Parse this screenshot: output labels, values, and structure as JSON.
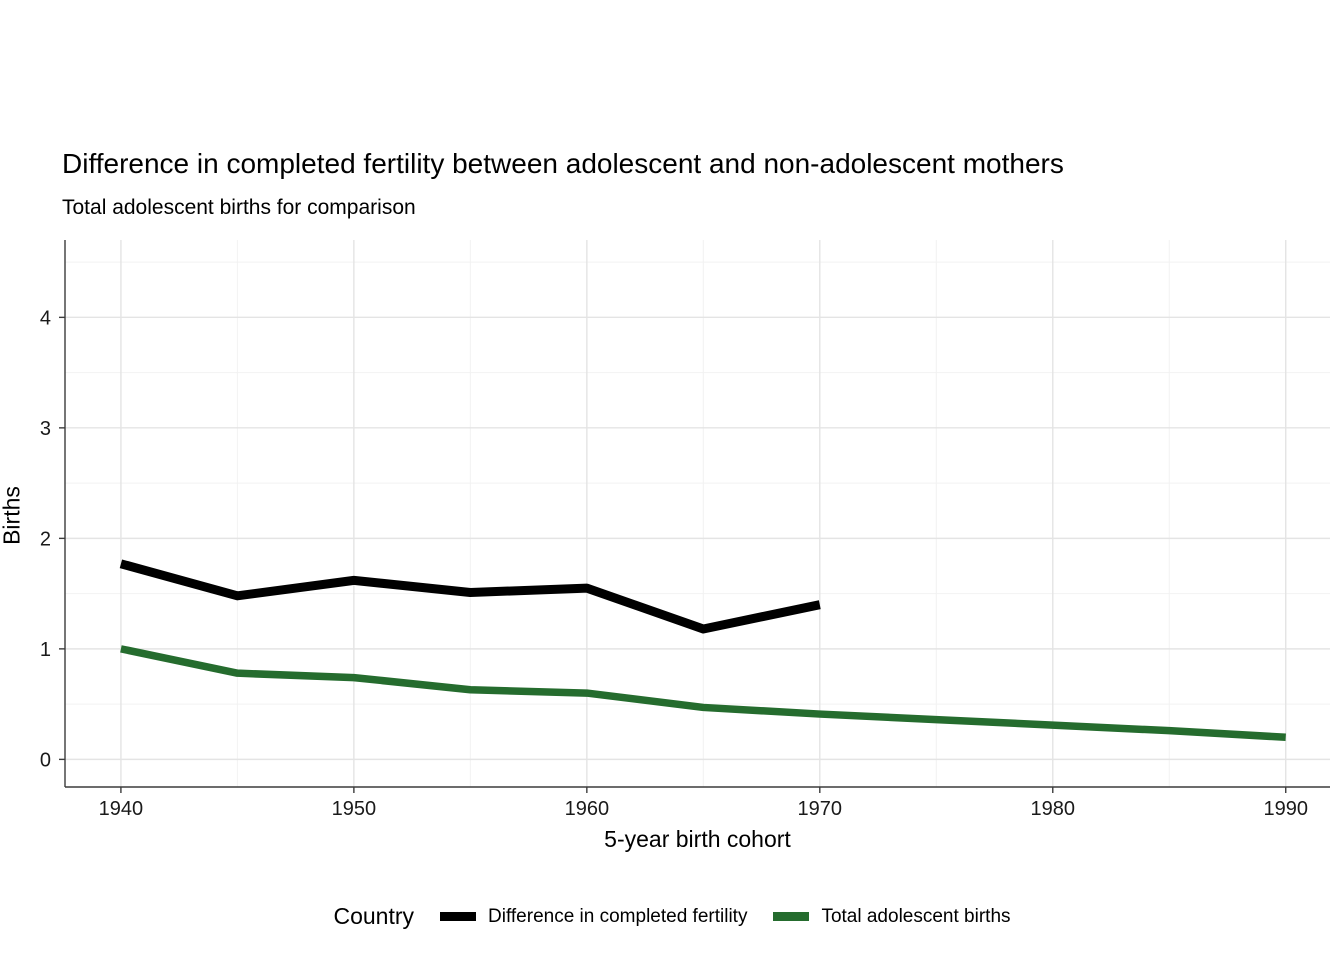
{
  "title": "Difference in completed fertility between adolescent and non-adolescent mothers",
  "subtitle": "Total adolescent births for comparison",
  "chart_data": {
    "type": "line",
    "title": "Difference in completed fertility between adolescent and non-adolescent mothers",
    "subtitle": "Total adolescent births for comparison",
    "xlabel": "5-year birth cohort",
    "ylabel": "Births",
    "legend_title": "Country",
    "legend_position": "bottom",
    "grid": true,
    "xticks": [
      1940,
      1950,
      1960,
      1970,
      1980,
      1990
    ],
    "yticks": [
      0,
      1,
      2,
      3,
      4
    ],
    "xlim": [
      1937.6,
      1991.9
    ],
    "ylim": [
      -0.25,
      4.7
    ],
    "series": [
      {
        "name": "Difference in completed fertility",
        "color": "#000000",
        "x": [
          1940,
          1945,
          1950,
          1955,
          1960,
          1965,
          1970
        ],
        "values": [
          1.77,
          1.48,
          1.62,
          1.51,
          1.55,
          1.18,
          1.4
        ]
      },
      {
        "name": "Total adolescent births",
        "color": "#256c2e",
        "x": [
          1940,
          1945,
          1950,
          1955,
          1960,
          1965,
          1970,
          1975,
          1980,
          1985,
          1990
        ],
        "values": [
          1.0,
          0.78,
          0.74,
          0.63,
          0.6,
          0.47,
          0.41,
          0.36,
          0.31,
          0.26,
          0.2
        ]
      }
    ]
  }
}
